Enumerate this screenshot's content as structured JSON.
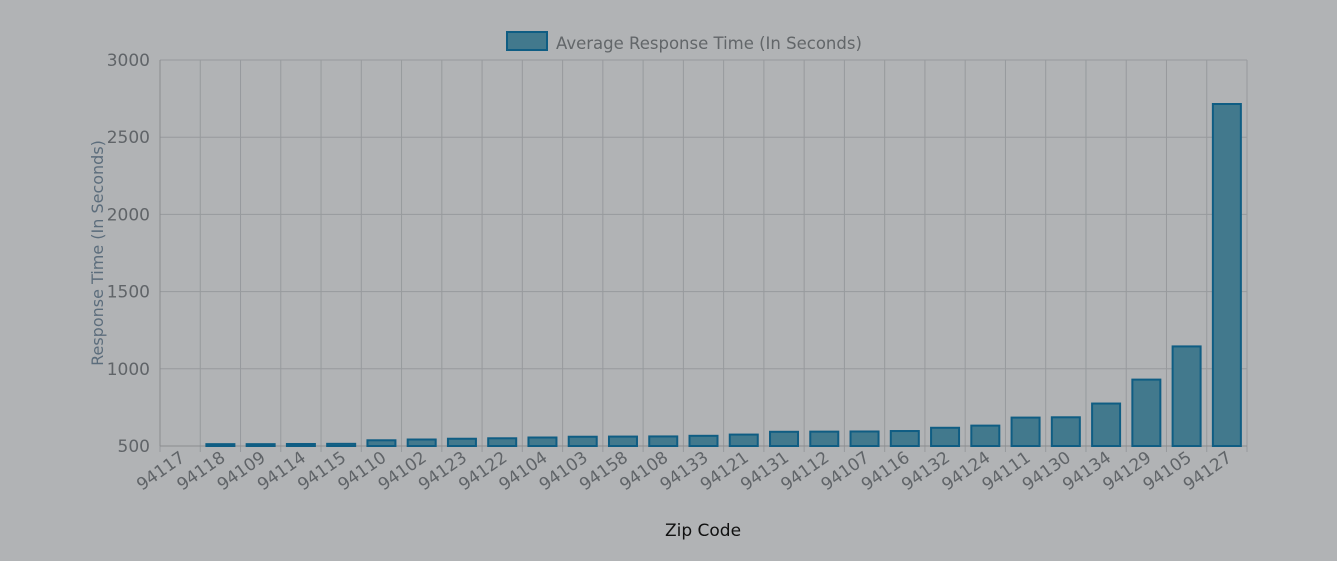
{
  "chart_data": {
    "type": "bar",
    "title": "",
    "xlabel": "Zip Code",
    "ylabel": "Response Time (In Seconds)",
    "legend": {
      "label": "Average Response Time (In Seconds)",
      "position": "top-center"
    },
    "grid": true,
    "ylim": [
      500,
      3000
    ],
    "yticks": [
      500,
      1000,
      1500,
      2000,
      2500,
      3000
    ],
    "categories": [
      "94117",
      "94118",
      "94109",
      "94114",
      "94115",
      "94110",
      "94102",
      "94123",
      "94122",
      "94104",
      "94103",
      "94158",
      "94108",
      "94133",
      "94121",
      "94131",
      "94112",
      "94107",
      "94116",
      "94132",
      "94124",
      "94111",
      "94130",
      "94134",
      "94129",
      "94105",
      "94127"
    ],
    "series": [
      {
        "name": "Average Response Time (In Seconds)",
        "values": [
          500,
          512,
          512,
          513,
          514,
          537,
          542,
          547,
          550,
          555,
          560,
          561,
          562,
          566,
          574,
          592,
          593,
          594,
          597,
          618,
          632,
          684,
          686,
          775,
          930,
          1145,
          2715
        ]
      }
    ],
    "colors": {
      "bar_fill": "#42798d",
      "bar_stroke": "#0f5d83"
    }
  }
}
